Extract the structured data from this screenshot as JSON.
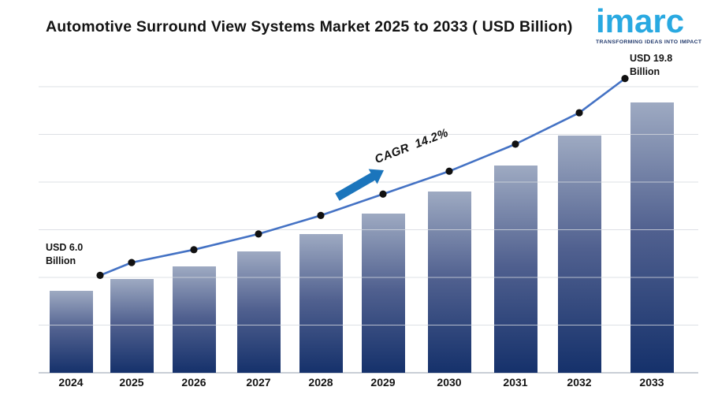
{
  "header": {
    "title": "Automotive Surround View Systems Market 2025 to 2033 ( USD Billion)",
    "logo": {
      "brand": "imarc",
      "tagline": "TRANSFORMING IDEAS INTO IMPACT",
      "brand_color": "#29A9E1",
      "tagline_color": "#20386B"
    }
  },
  "chart_data": {
    "type": "bar",
    "overlay": "line",
    "title": "Automotive Surround View Systems Market 2025 to 2033 ( USD Billion)",
    "categories": [
      "2024",
      "2025",
      "2026",
      "2027",
      "2028",
      "2029",
      "2030",
      "2031",
      "2032",
      "2033"
    ],
    "values": [
      6.0,
      6.9,
      7.8,
      8.9,
      10.2,
      11.7,
      13.3,
      15.2,
      17.4,
      19.8
    ],
    "xlabel": "",
    "ylabel": "",
    "ylim": [
      0,
      21
    ],
    "grid": "horizontal, no axis tick labels",
    "legend": "none",
    "annotations": {
      "start": {
        "line1": "USD 6.0",
        "line2": "Billion"
      },
      "end": {
        "line1": "USD 19.8",
        "line2": "Billion"
      },
      "cagr": "CAGR  14.2%"
    },
    "colors": {
      "line": "#4472C4",
      "marker": "#111111",
      "bar_top": "#9EAAC2",
      "bar_mid": "#50608F",
      "bar_bottom": "#15316B",
      "arrow": "#1B75BC",
      "grid": "#D4D8DF"
    }
  }
}
